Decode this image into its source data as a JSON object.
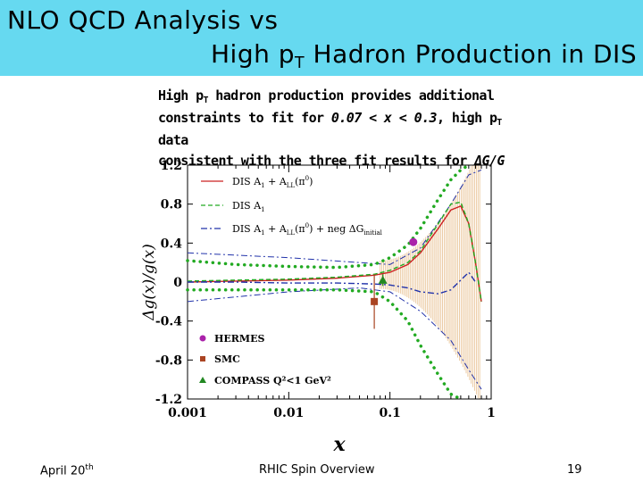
{
  "slide": {
    "title_line1": "NLO QCD Analysis vs",
    "title_line2_pre": "High p",
    "title_line2_sub": "T",
    "title_line2_post": " Hadron Production in DIS",
    "intro": {
      "line1_pre": "High p",
      "line1_sub": "T",
      "line1_post": " hadron production provides additional",
      "line2_pre": "constraints to fit for ",
      "line2_range": "0.07 < x < 0.3",
      "line2_post": ",  high p",
      "line2_sub": "T",
      "line2_end": " data",
      "line3_pre": "consistent with the three fit results for ",
      "line3_sym": "ΔG/G"
    },
    "footer": {
      "date_pre": "April 20",
      "date_sup": "th",
      "center": "RHIC Spin Overview",
      "page": "19"
    }
  },
  "chart_data": {
    "type": "line",
    "xscale": "log",
    "xlim": [
      0.001,
      1
    ],
    "ylim": [
      -1.2,
      1.2
    ],
    "xlabel": "x",
    "ylabel": "Δg(x)/g(x)",
    "xticks": [
      "0.001",
      "0.01",
      "0.1",
      "1"
    ],
    "yticks": [
      "1.2",
      "0.8",
      "0.4",
      "0",
      "-0.4",
      "-0.8",
      "-1.2"
    ],
    "legend_lines": [
      {
        "label": "DIS A1 + ALL(π0)",
        "style": "solid",
        "color": "#cc2222"
      },
      {
        "label": "DIS A1",
        "style": "dashed",
        "color": "#22aa22"
      },
      {
        "label": "DIS A1 + ALL(π0) + neg ΔGinitial",
        "style": "dash-dot",
        "color": "#2233aa"
      }
    ],
    "legend_data": [
      {
        "label": "HERMES",
        "marker": "circle",
        "color": "#aa22aa"
      },
      {
        "label": "SMC",
        "marker": "square",
        "color": "#aa4422"
      },
      {
        "label": "COMPASS Q²<1 GeV²",
        "marker": "triangle",
        "color": "#228822"
      }
    ],
    "series": [
      {
        "key": "dis_all",
        "color": "#cc2222",
        "style": "solid",
        "x": [
          0.001,
          0.003,
          0.01,
          0.03,
          0.07,
          0.1,
          0.15,
          0.2,
          0.3,
          0.4,
          0.5,
          0.6,
          0.7,
          0.8
        ],
        "y": [
          0.0,
          0.01,
          0.02,
          0.04,
          0.07,
          0.1,
          0.18,
          0.3,
          0.55,
          0.74,
          0.78,
          0.6,
          0.2,
          -0.2
        ]
      },
      {
        "key": "dis_a1",
        "color": "#22aa22",
        "style": "dashed",
        "x": [
          0.001,
          0.003,
          0.01,
          0.03,
          0.07,
          0.1,
          0.15,
          0.2,
          0.3,
          0.4,
          0.5,
          0.6,
          0.7,
          0.8
        ],
        "y": [
          0.01,
          0.02,
          0.03,
          0.05,
          0.08,
          0.12,
          0.2,
          0.32,
          0.6,
          0.8,
          0.82,
          0.6,
          0.2,
          -0.2
        ]
      },
      {
        "key": "dis_neg",
        "color": "#2233aa",
        "style": "dash-dot",
        "x": [
          0.001,
          0.003,
          0.01,
          0.03,
          0.07,
          0.1,
          0.15,
          0.2,
          0.3,
          0.4,
          0.5,
          0.6,
          0.7
        ],
        "y": [
          0.0,
          0.0,
          -0.01,
          -0.01,
          -0.02,
          -0.03,
          -0.06,
          -0.1,
          -0.12,
          -0.08,
          0.02,
          0.1,
          0.0
        ]
      }
    ],
    "band_curves": [
      {
        "color": "#2233aa",
        "style": "dash-dot",
        "x": [
          0.001,
          0.01,
          0.05,
          0.1,
          0.2,
          0.4,
          0.6,
          0.8
        ],
        "y": [
          0.3,
          0.25,
          0.2,
          0.18,
          0.35,
          0.8,
          1.1,
          1.15
        ]
      },
      {
        "color": "#2233aa",
        "style": "dash-dot",
        "x": [
          0.001,
          0.01,
          0.05,
          0.1,
          0.2,
          0.4,
          0.6,
          0.8
        ],
        "y": [
          -0.2,
          -0.1,
          -0.06,
          -0.1,
          -0.3,
          -0.6,
          -0.9,
          -1.1
        ]
      },
      {
        "color": "#22aa22",
        "style": "dotted",
        "x": [
          0.001,
          0.003,
          0.01,
          0.03,
          0.07,
          0.1,
          0.15,
          0.2,
          0.3,
          0.4,
          0.5,
          0.6
        ],
        "y": [
          0.22,
          0.18,
          0.16,
          0.15,
          0.18,
          0.25,
          0.38,
          0.55,
          0.85,
          1.05,
          1.15,
          1.2
        ]
      },
      {
        "color": "#22aa22",
        "style": "dotted",
        "x": [
          0.001,
          0.003,
          0.01,
          0.03,
          0.07,
          0.1,
          0.15,
          0.2,
          0.3,
          0.4,
          0.5
        ],
        "y": [
          -0.08,
          -0.08,
          -0.08,
          -0.08,
          -0.1,
          -0.2,
          -0.4,
          -0.65,
          -0.95,
          -1.15,
          -1.2
        ]
      }
    ],
    "points": [
      {
        "name": "HERMES",
        "x": 0.17,
        "y": 0.41,
        "yerr": 0.0,
        "marker": "circle",
        "color": "#aa22aa"
      },
      {
        "name": "SMC",
        "x": 0.07,
        "y": -0.2,
        "yerr": 0.28,
        "marker": "square",
        "color": "#aa4422"
      },
      {
        "name": "COMPASS",
        "x": 0.085,
        "y": 0.02,
        "yerr": 0.06,
        "marker": "triangle",
        "color": "#228822"
      }
    ]
  }
}
